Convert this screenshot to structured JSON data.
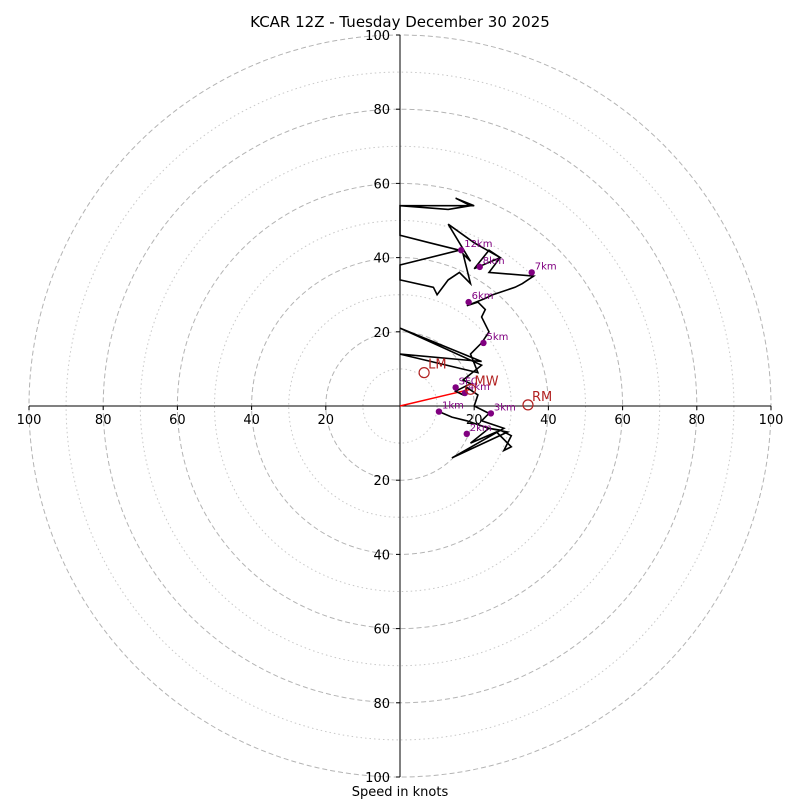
{
  "chart_data": {
    "type": "hodograph",
    "title": "KCAR 12Z - Tuesday December 30 2025",
    "xlabel": "Speed in knots",
    "ylabel": "",
    "axis_range": [
      -100,
      100
    ],
    "ring_major": [
      20,
      40,
      60,
      80,
      100
    ],
    "ring_minor": [
      10,
      30,
      50,
      70,
      90
    ],
    "x_tick_labels": [
      "100",
      "80",
      "60",
      "40",
      "20",
      "20",
      "40",
      "60",
      "80",
      "100"
    ],
    "y_tick_labels": [
      "100",
      "80",
      "60",
      "40",
      "20",
      "20",
      "40",
      "60",
      "80",
      "100"
    ],
    "hodograph": {
      "color": "#000000",
      "points": [
        [
          10.5,
          -1.5
        ],
        [
          14,
          -3
        ],
        [
          18,
          -4
        ],
        [
          21,
          -5
        ],
        [
          24,
          -6
        ],
        [
          27,
          -6.5
        ],
        [
          30,
          -8
        ],
        [
          28,
          -12
        ],
        [
          30,
          -11
        ],
        [
          26,
          -7
        ],
        [
          19,
          -10
        ],
        [
          24,
          -6
        ],
        [
          29,
          -7
        ],
        [
          14,
          -14
        ],
        [
          28,
          -6
        ],
        [
          22,
          -4
        ],
        [
          24,
          -2
        ],
        [
          20,
          0
        ],
        [
          21,
          3
        ],
        [
          18,
          5
        ],
        [
          17,
          3
        ],
        [
          15,
          4
        ],
        [
          19,
          6
        ],
        [
          17,
          7
        ],
        [
          22,
          11
        ],
        [
          0,
          21
        ],
        [
          22,
          12
        ],
        [
          0,
          14
        ],
        [
          21,
          9
        ],
        [
          19,
          14
        ],
        [
          22,
          17
        ],
        [
          24,
          20
        ],
        [
          22,
          24
        ],
        [
          23,
          26
        ],
        [
          21,
          28
        ],
        [
          18,
          27
        ],
        [
          23,
          29
        ],
        [
          25,
          30
        ],
        [
          31,
          32
        ],
        [
          33,
          33
        ],
        [
          36,
          35
        ],
        [
          24,
          36
        ],
        [
          27,
          40
        ],
        [
          24,
          42
        ],
        [
          20,
          37
        ],
        [
          27,
          40
        ],
        [
          20,
          44
        ],
        [
          13,
          49
        ],
        [
          19,
          39
        ],
        [
          17,
          41
        ],
        [
          19,
          33
        ],
        [
          16,
          36
        ],
        [
          13,
          34
        ],
        [
          10,
          30
        ],
        [
          9,
          32
        ],
        [
          0,
          34
        ],
        [
          0,
          38
        ],
        [
          16,
          42
        ],
        [
          8,
          44
        ],
        [
          0,
          46
        ],
        [
          0,
          54
        ],
        [
          20,
          54
        ],
        [
          15,
          56
        ],
        [
          19,
          54
        ],
        [
          13,
          53
        ],
        [
          0,
          54
        ]
      ]
    },
    "height_markers": [
      {
        "label": "1km",
        "u": 10.5,
        "v": -1.5
      },
      {
        "label": "2km",
        "u": 18,
        "v": -7.5
      },
      {
        "label": "3km",
        "u": 24.5,
        "v": -2
      },
      {
        "label": "4km",
        "u": 17.5,
        "v": 3.5
      },
      {
        "label": "5km",
        "u": 22.5,
        "v": 17
      },
      {
        "label": "6km",
        "u": 18.5,
        "v": 28
      },
      {
        "label": "7km",
        "u": 35.5,
        "v": 36
      },
      {
        "label": "8km",
        "u": 21.5,
        "v": 37.5
      },
      {
        "label": "12km",
        "u": 16.5,
        "v": 42
      },
      {
        "label": "SFC",
        "u": 15,
        "v": 5
      }
    ],
    "storm_motion": [
      {
        "label": "LM",
        "u": 6.5,
        "v": 9,
        "color": "#b22222"
      },
      {
        "label": "MW",
        "u": 19,
        "v": 4.5,
        "color": "#b22222"
      },
      {
        "label": "RM",
        "u": 34.5,
        "v": 0.3,
        "color": "#b22222"
      }
    ],
    "shear_vector": {
      "from": [
        0,
        0
      ],
      "to": [
        19,
        4.5
      ],
      "color": "#ff0000"
    }
  }
}
